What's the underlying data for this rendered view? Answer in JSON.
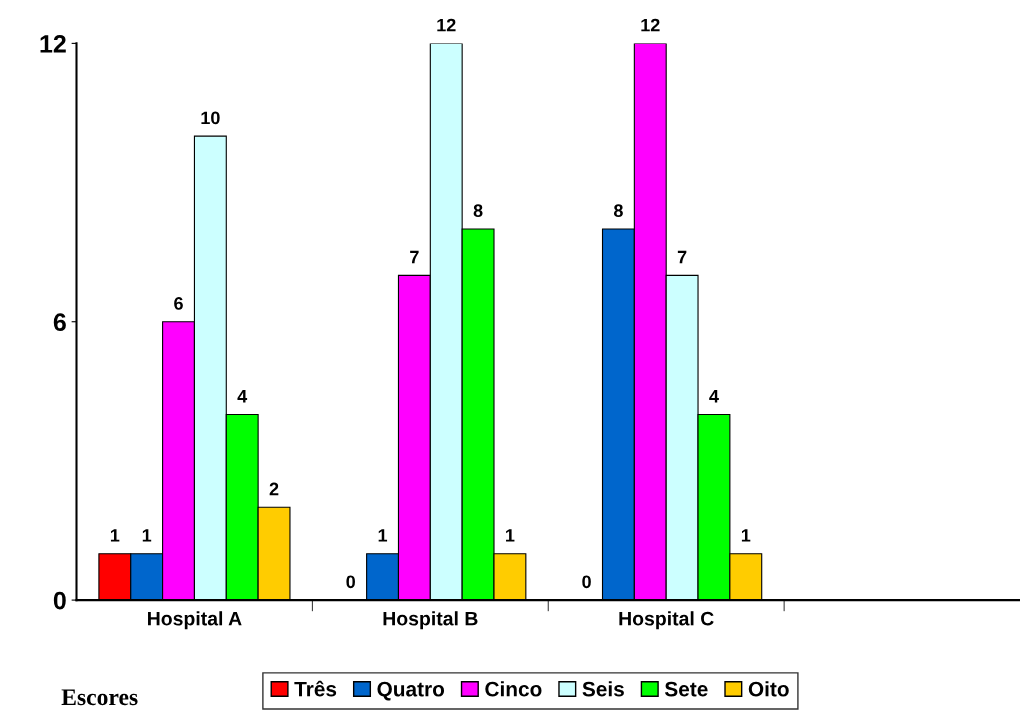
{
  "chart_data": {
    "type": "bar",
    "categories": [
      "Hospital A",
      "Hospital B",
      "Hospital C",
      null
    ],
    "series": [
      {
        "name": "Três",
        "color": "#ff0000",
        "values": [
          1,
          0,
          0,
          null
        ]
      },
      {
        "name": "Quatro",
        "color": "#0066cc",
        "values": [
          1,
          1,
          8,
          null
        ]
      },
      {
        "name": "Cinco",
        "color": "#ff00ff",
        "values": [
          6,
          7,
          12,
          null
        ]
      },
      {
        "name": "Seis",
        "color": "#ccffff",
        "values": [
          10,
          12,
          7,
          null
        ]
      },
      {
        "name": "Sete",
        "color": "#00ff00",
        "values": [
          4,
          8,
          4,
          null
        ]
      },
      {
        "name": "Oito",
        "color": "#ffcc00",
        "values": [
          2,
          1,
          1,
          null
        ]
      }
    ],
    "ylim": [
      0,
      12
    ],
    "yticks": [
      0,
      6,
      12
    ],
    "data_labels": true,
    "legend": "bottom",
    "legend_title": "Escores",
    "grid": false
  }
}
